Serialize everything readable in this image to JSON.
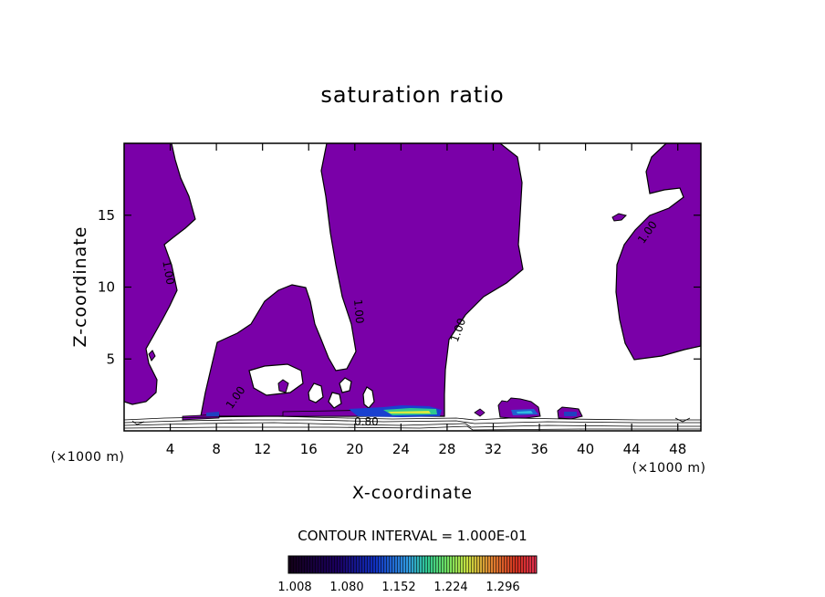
{
  "chart_data": {
    "type": "contour",
    "title": "saturation ratio",
    "xlabel": "X-coordinate",
    "ylabel": "Z-coordinate",
    "x_unit": "(×1000 m)",
    "y_unit": "(×1000 m)",
    "xlim": [
      0,
      50
    ],
    "ylim": [
      0,
      20
    ],
    "x_ticks": [
      4,
      8,
      12,
      16,
      20,
      24,
      28,
      32,
      36,
      40,
      44,
      48
    ],
    "y_ticks": [
      5,
      10,
      15
    ],
    "contour_interval_text": "CONTOUR INTERVAL = 1.000E-01",
    "contour_labels": [
      {
        "text": "1.00",
        "x": 3.8,
        "z": 11.0
      },
      {
        "text": "1.00",
        "x": 20.3,
        "z": 8.3
      },
      {
        "text": "1.00",
        "x": 29.0,
        "z": 7.0
      },
      {
        "text": "1.00",
        "x": 45.4,
        "z": 13.8
      },
      {
        "text": "1.00",
        "x": 9.7,
        "z": 2.3
      },
      {
        "text": "0.80",
        "x": 21.0,
        "z": 0.6
      }
    ],
    "fill_color": "#7a00a8",
    "colorbar": {
      "labels": [
        "1.008",
        "1.080",
        "1.152",
        "1.224",
        "1.296"
      ],
      "colors": [
        "#140018",
        "#1a0060",
        "#1030c0",
        "#3098e0",
        "#30c890",
        "#70e060",
        "#c8e040",
        "#e08030",
        "#d03020",
        "#e03050"
      ]
    }
  }
}
